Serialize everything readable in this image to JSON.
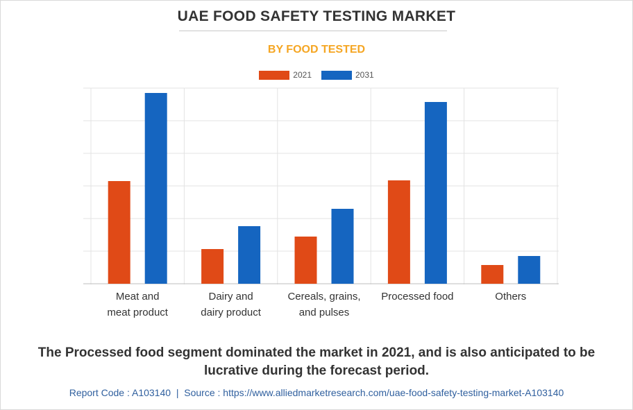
{
  "title": "UAE FOOD SAFETY TESTING MARKET",
  "subtitle": "BY FOOD TESTED",
  "colors": {
    "series_2021": "#e04a17",
    "series_2031": "#1565c0",
    "subtitle": "#f5a623"
  },
  "chart_data": {
    "type": "bar",
    "categories": [
      [
        "Meat and",
        "meat product"
      ],
      [
        "Dairy and",
        "dairy product"
      ],
      [
        "Cereals, grains,",
        "and pulses"
      ],
      [
        "Processed food"
      ],
      [
        "Others"
      ]
    ],
    "series": [
      {
        "name": "2021",
        "color": "#e04a17",
        "values": [
          148,
          50,
          68,
          149,
          27
        ]
      },
      {
        "name": "2031",
        "color": "#1565c0",
        "values": [
          275,
          83,
          108,
          262,
          40
        ]
      }
    ],
    "ylim": [
      0,
      282
    ],
    "grid_step": 47,
    "grid": true,
    "legend": "top-center",
    "xlabel": "",
    "ylabel": ""
  },
  "summary": "The Processed food segment dominated the market in 2021, and is also anticipated to be lucrative during the forecast period.",
  "footer": {
    "report_code": "Report Code : A103140",
    "separator": "|",
    "source": "Source : https://www.alliedmarketresearch.com/uae-food-safety-testing-market-A103140"
  }
}
